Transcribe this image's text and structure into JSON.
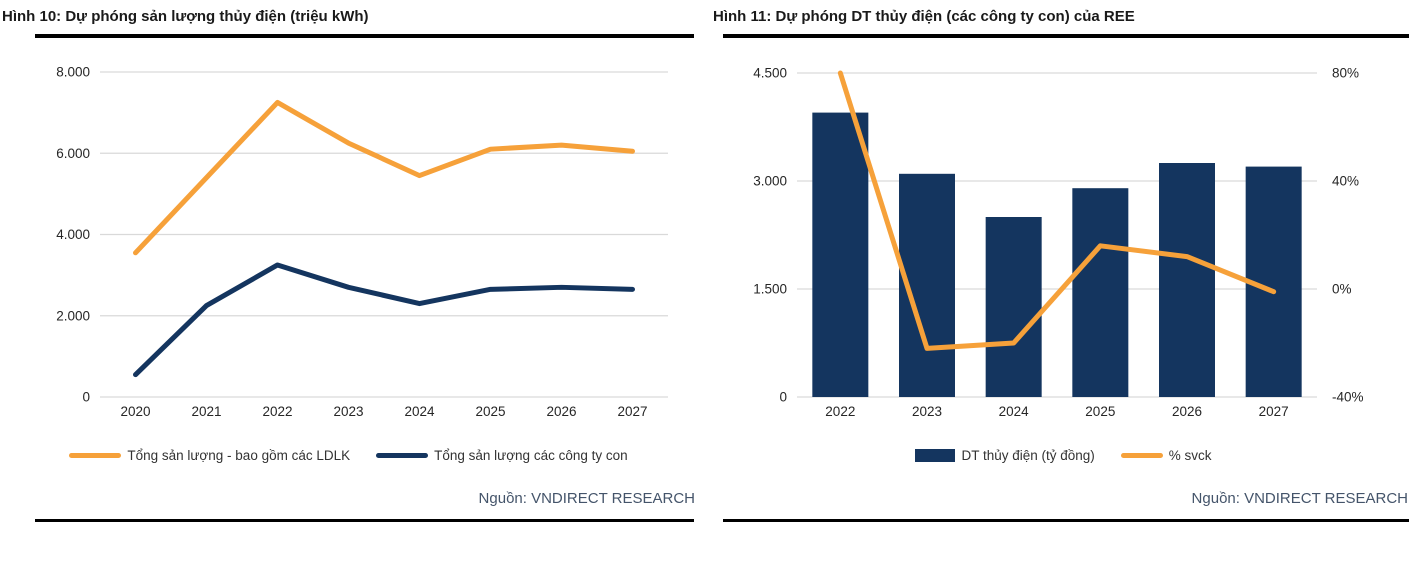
{
  "colors": {
    "orange": "#F6A13A",
    "navy": "#14355F",
    "grid": "#D9D9D9",
    "title_text": "#1A1A1A",
    "axis_text": "#262626",
    "source_text": "#44546A",
    "rule": "#000000"
  },
  "chart_data": [
    {
      "id": "fig10",
      "type": "line",
      "title": "Hình 10: Dự phóng sản lượng thủy điện (triệu kWh)",
      "categories": [
        "2020",
        "2021",
        "2022",
        "2023",
        "2024",
        "2025",
        "2026",
        "2027"
      ],
      "series": [
        {
          "name": "Tổng sản lượng - bao gồm các LDLK",
          "color_key": "orange",
          "values": [
            3550,
            5400,
            7250,
            6250,
            5450,
            6100,
            6200,
            6050
          ]
        },
        {
          "name": "Tổng sản lượng các công ty con",
          "color_key": "navy",
          "values": [
            550,
            2250,
            3250,
            2700,
            2300,
            2650,
            2700,
            2650
          ]
        }
      ],
      "ylim": [
        0,
        8000
      ],
      "yticks": [
        {
          "v": 0,
          "label": "0"
        },
        {
          "v": 2000,
          "label": "2.000"
        },
        {
          "v": 4000,
          "label": "4.000"
        },
        {
          "v": 6000,
          "label": "6.000"
        },
        {
          "v": 8000,
          "label": "8.000"
        }
      ],
      "grid": true,
      "legend_position": "bottom",
      "source": "Nguồn: VNDIRECT RESEARCH"
    },
    {
      "id": "fig11",
      "type": "bar+line",
      "title": "Hình 11: Dự phóng DT thủy điện (các công ty con) của REE",
      "categories": [
        "2022",
        "2023",
        "2024",
        "2025",
        "2026",
        "2027"
      ],
      "series": [
        {
          "name": "DT thủy điện (tỷ đồng)",
          "type": "bar",
          "axis": "left",
          "color_key": "navy",
          "values": [
            3950,
            3100,
            2500,
            2900,
            3250,
            3200
          ]
        },
        {
          "name": "% svck",
          "type": "line",
          "axis": "right",
          "color_key": "orange",
          "values": [
            80,
            -22,
            -20,
            16,
            12,
            -1
          ]
        }
      ],
      "ylim_left": [
        0,
        4500
      ],
      "ylim_right": [
        -40,
        80
      ],
      "yticks_left": [
        {
          "v": 0,
          "label": "0"
        },
        {
          "v": 1500,
          "label": "1.500"
        },
        {
          "v": 3000,
          "label": "3.000"
        },
        {
          "v": 4500,
          "label": "4.500"
        }
      ],
      "yticks_right": [
        {
          "v": -40,
          "label": "-40%"
        },
        {
          "v": 0,
          "label": "0%"
        },
        {
          "v": 40,
          "label": "40%"
        },
        {
          "v": 80,
          "label": "80%"
        }
      ],
      "grid": true,
      "legend_position": "bottom",
      "source": "Nguồn: VNDIRECT RESEARCH"
    }
  ]
}
